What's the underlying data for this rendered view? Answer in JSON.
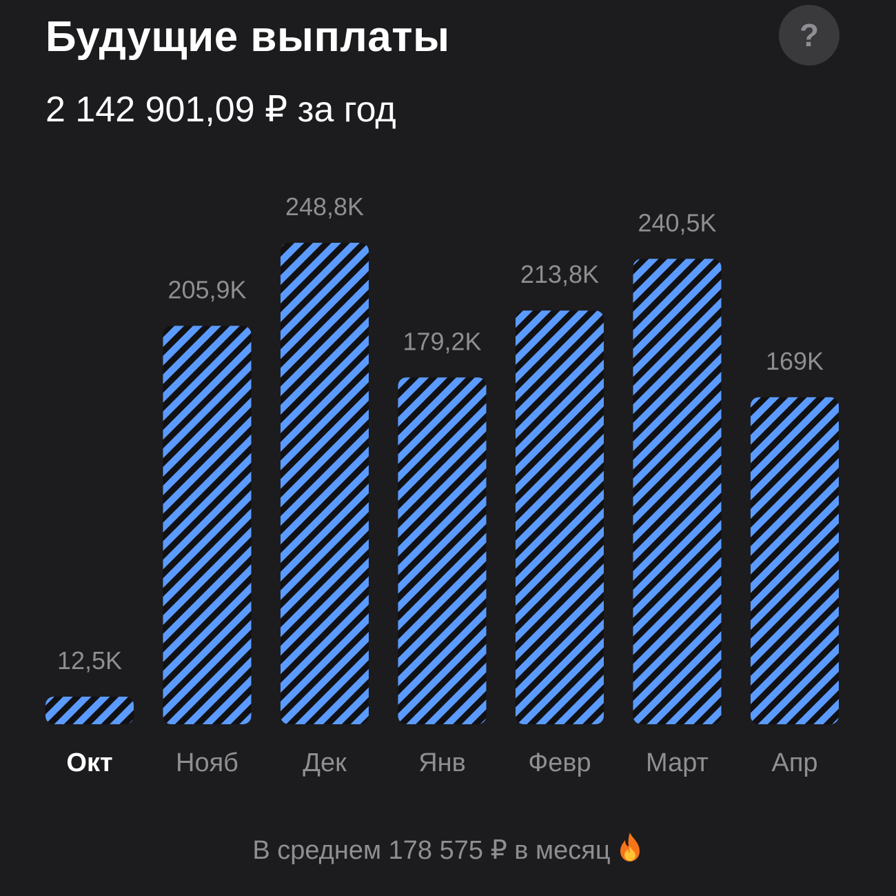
{
  "header": {
    "title": "Будущие выплаты",
    "subtitle": "2 142 901,09 ₽ за год",
    "help_icon": "question-mark-icon",
    "help_label": "?"
  },
  "footer": {
    "text": "В среднем 178 575 ₽ в месяц",
    "icon": "flame-icon"
  },
  "colors": {
    "background": "#1c1c1e",
    "bar_stripe": "#5b9bff",
    "bar_stripe_dark": "#111114",
    "label_muted": "#8e8e93",
    "label_active": "#ffffff"
  },
  "chart_data": {
    "type": "bar",
    "title": "",
    "xlabel": "",
    "ylabel": "",
    "categories": [
      "Окт",
      "Нояб",
      "Дек",
      "Янв",
      "Февр",
      "Март",
      "Апр"
    ],
    "values": [
      12.5,
      205.9,
      248.8,
      179.2,
      213.8,
      240.5,
      169
    ],
    "value_labels": [
      "12,5K",
      "205,9K",
      "248,8K",
      "179,2K",
      "213,8K",
      "240,5K",
      "169K"
    ],
    "unit": "тыс. ₽",
    "active_category": "Окт",
    "ylim": [
      0,
      248.8
    ],
    "grid": false,
    "legend": "none"
  }
}
